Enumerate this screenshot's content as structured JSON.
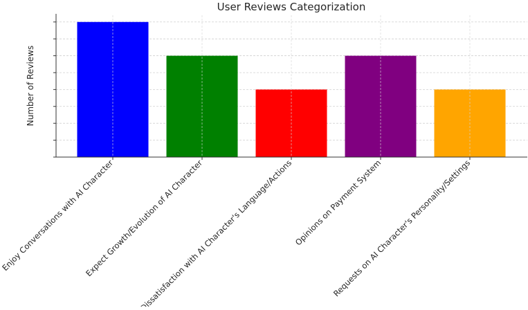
{
  "chart_data": {
    "type": "bar",
    "title": "User Reviews Categorization",
    "xlabel": "",
    "ylabel": "Number of Reviews",
    "categories": [
      "Enjoy Conversations with AI Character",
      "Expect Growth/Evolution of AI Character",
      "Dissatisfaction with AI Character's Language/Actions",
      "Opinions on Payment System",
      "Requests on AI Character's Personality/Settings"
    ],
    "values": [
      4,
      3,
      2,
      3,
      2
    ],
    "colors": [
      "#0000ff",
      "#008000",
      "#ff0000",
      "#800080",
      "#ffa500"
    ],
    "ylim": [
      0,
      4.2
    ],
    "yticks": [
      0,
      0.5,
      1,
      1.5,
      2,
      2.5,
      3,
      3.5,
      4
    ],
    "grid": true,
    "legend": "none"
  }
}
